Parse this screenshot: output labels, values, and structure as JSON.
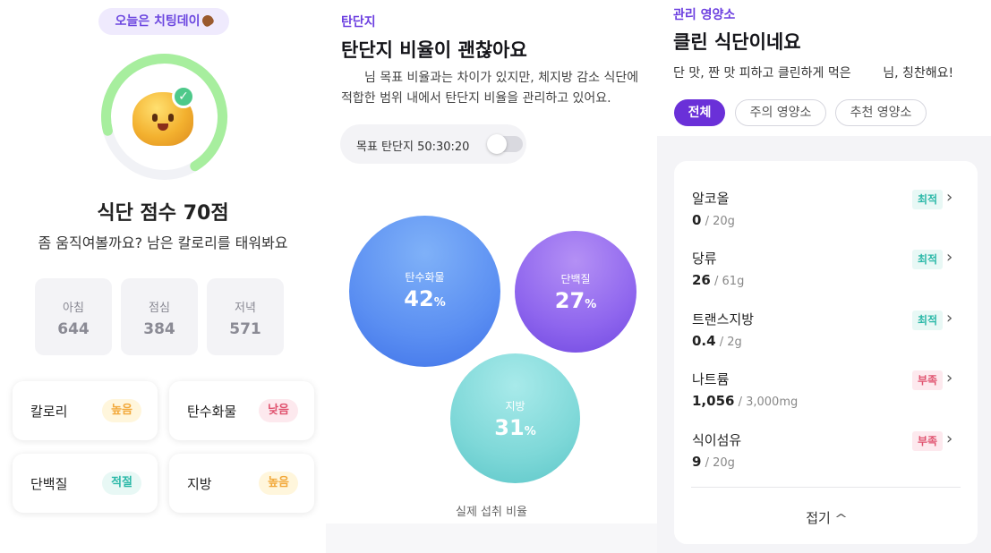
{
  "panel1": {
    "cheat_day": "오늘은 치팅데이",
    "score_title": "식단 점수 70점",
    "score_sub": "좀 움직여볼까요? 남은 칼로리를 태워봐요",
    "score_value": 70,
    "meals": [
      {
        "label": "아침",
        "value": "644"
      },
      {
        "label": "점심",
        "value": "384"
      },
      {
        "label": "저녁",
        "value": "571"
      }
    ],
    "nutrient_cards": [
      {
        "label": "칼로리",
        "badge": "높음",
        "color": "#f2a93b",
        "bg": "#fff6dc"
      },
      {
        "label": "탄수화물",
        "badge": "낮음",
        "color": "#e0536f",
        "bg": "#fde9ee"
      },
      {
        "label": "단백질",
        "badge": "적절",
        "color": "#2bb8a8",
        "bg": "#e8f8f5"
      },
      {
        "label": "지방",
        "badge": "높음",
        "color": "#f2a93b",
        "bg": "#fff6dc"
      }
    ],
    "ring_color": "#a7ee9e",
    "ring_track": "#f1f2f6"
  },
  "panel2": {
    "tag": "탄단지",
    "title": "탄단지 비율이 괜찮아요",
    "description": "님 목표 비율과는 차이가 있지만, 체지방 감소 식단에 적합한 범위 내에서 탄단지 비율을 관리하고 있어요.",
    "goal_label": "목표 탄단지 50:30:20",
    "goal_toggle_on": false,
    "bubbles": [
      {
        "label": "탄수화물",
        "value": "42",
        "unit": "%"
      },
      {
        "label": "단백질",
        "value": "27",
        "unit": "%"
      },
      {
        "label": "지방",
        "value": "31",
        "unit": "%"
      }
    ],
    "caption": "실제 섭취 비율"
  },
  "panel3": {
    "tag": "관리 영양소",
    "title": "클린 식단이네요",
    "subtitle": "단 맛, 짠 맛 피하고 클린하게 먹은        님, 칭찬해요!",
    "chips": [
      "전체",
      "주의 영양소",
      "추천 영양소"
    ],
    "active_chip": "전체",
    "nutrients": [
      {
        "name": "알코올",
        "value": "0",
        "limit": "/ 20g",
        "status": "최적",
        "status_type": "best"
      },
      {
        "name": "당류",
        "value": "26",
        "limit": "/ 61g",
        "status": "최적",
        "status_type": "best"
      },
      {
        "name": "트랜스지방",
        "value": "0.4",
        "limit": "/ 2g",
        "status": "최적",
        "status_type": "best"
      },
      {
        "name": "나트륨",
        "value": "1,056",
        "limit": "/ 3,000mg",
        "status": "부족",
        "status_type": "low"
      },
      {
        "name": "식이섬유",
        "value": "9",
        "limit": "/ 20g",
        "status": "부족",
        "status_type": "low"
      }
    ],
    "collapse_label": "접기",
    "accent": "#6a30d8"
  }
}
